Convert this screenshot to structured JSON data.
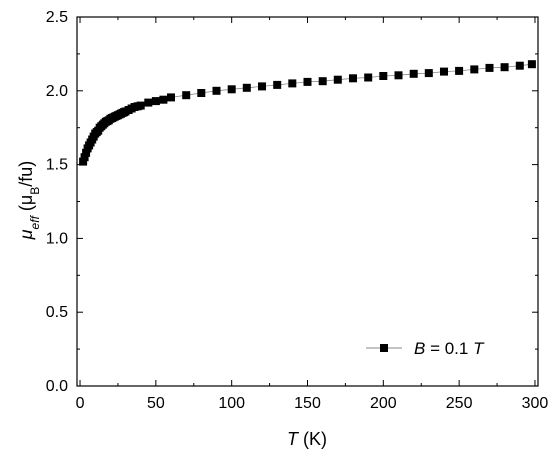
{
  "chart_data": {
    "type": "scatter",
    "xlabel": {
      "symbol": "T",
      "unit": " (K)"
    },
    "ylabel": {
      "symbol": "μ",
      "subscript": "eff",
      "unit_open": " (μ",
      "unit_sub": "B",
      "unit_close": "/fu)"
    },
    "xlim": [
      -2,
      302
    ],
    "ylim": [
      0,
      2.5
    ],
    "x_ticks": [
      0,
      50,
      100,
      150,
      200,
      250,
      300
    ],
    "x_tick_labels": [
      "0",
      "50",
      "100",
      "150",
      "200",
      "250",
      "300"
    ],
    "y_ticks": [
      0,
      0.5,
      1.0,
      1.5,
      2.0,
      2.5
    ],
    "y_tick_labels": [
      "0.0",
      "0.5",
      "1.0",
      "1.5",
      "2.0",
      "2.5"
    ],
    "grid": false,
    "legend_position": "bottom-right",
    "series": [
      {
        "name": {
          "symbol": "B",
          "middle": " = 0.1 ",
          "unit": "T"
        },
        "marker": "square",
        "line": "thin-gray",
        "points": [
          [
            2,
            1.52
          ],
          [
            3,
            1.55
          ],
          [
            4,
            1.58
          ],
          [
            5,
            1.61
          ],
          [
            6,
            1.63
          ],
          [
            7,
            1.65
          ],
          [
            8,
            1.67
          ],
          [
            9,
            1.69
          ],
          [
            10,
            1.71
          ],
          [
            11,
            1.72
          ],
          [
            12,
            1.73
          ],
          [
            13,
            1.75
          ],
          [
            14,
            1.76
          ],
          [
            15,
            1.77
          ],
          [
            16,
            1.78
          ],
          [
            17,
            1.79
          ],
          [
            18,
            1.795
          ],
          [
            19,
            1.8
          ],
          [
            20,
            1.81
          ],
          [
            21,
            1.815
          ],
          [
            22,
            1.82
          ],
          [
            23,
            1.825
          ],
          [
            24,
            1.83
          ],
          [
            25,
            1.835
          ],
          [
            26,
            1.84
          ],
          [
            27,
            1.845
          ],
          [
            28,
            1.85
          ],
          [
            29,
            1.855
          ],
          [
            30,
            1.86
          ],
          [
            32,
            1.87
          ],
          [
            34,
            1.88
          ],
          [
            36,
            1.89
          ],
          [
            38,
            1.895
          ],
          [
            40,
            1.9
          ],
          [
            45,
            1.92
          ],
          [
            50,
            1.93
          ],
          [
            55,
            1.94
          ],
          [
            60,
            1.955
          ],
          [
            70,
            1.97
          ],
          [
            80,
            1.985
          ],
          [
            90,
            2.0
          ],
          [
            100,
            2.01
          ],
          [
            110,
            2.02
          ],
          [
            120,
            2.03
          ],
          [
            130,
            2.04
          ],
          [
            140,
            2.05
          ],
          [
            150,
            2.06
          ],
          [
            160,
            2.065
          ],
          [
            170,
            2.075
          ],
          [
            180,
            2.085
          ],
          [
            190,
            2.09
          ],
          [
            200,
            2.1
          ],
          [
            210,
            2.105
          ],
          [
            220,
            2.115
          ],
          [
            230,
            2.12
          ],
          [
            240,
            2.13
          ],
          [
            250,
            2.135
          ],
          [
            260,
            2.145
          ],
          [
            270,
            2.155
          ],
          [
            280,
            2.16
          ],
          [
            290,
            2.17
          ],
          [
            298,
            2.18
          ]
        ]
      }
    ]
  }
}
